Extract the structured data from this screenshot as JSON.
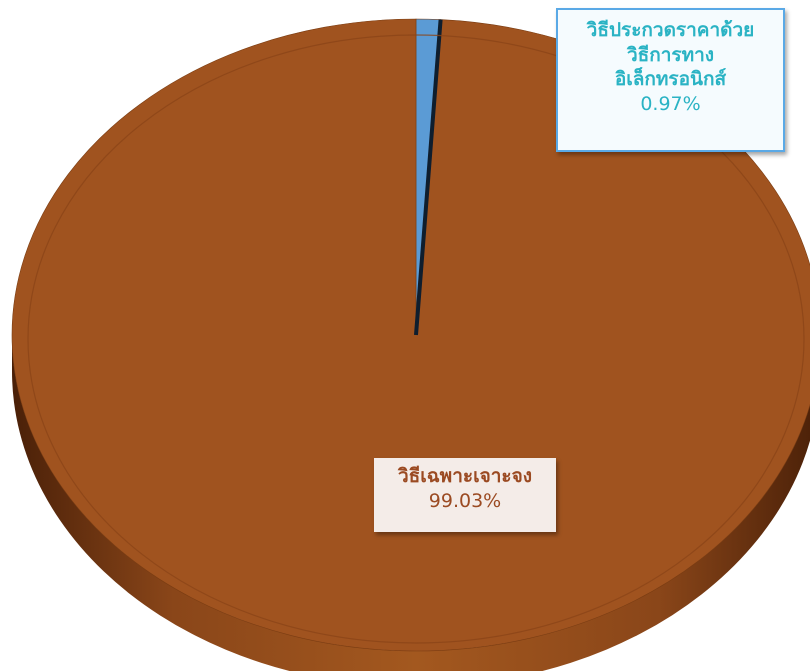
{
  "chart_data": {
    "type": "pie",
    "three_d": true,
    "slices": [
      {
        "label_lines": [
          "วิธีประกวดราคาด้วย",
          "วิธีการทาง",
          "อิเล็กทรอนิกส์"
        ],
        "percent_text": "0.97%",
        "value": 0.97,
        "color": "#5b9bd5"
      },
      {
        "label_lines": [
          "วิธีเฉพาะเจาะจง"
        ],
        "percent_text": "99.03%",
        "value": 99.03,
        "color": "#a0531f"
      }
    ],
    "legend": "none"
  }
}
